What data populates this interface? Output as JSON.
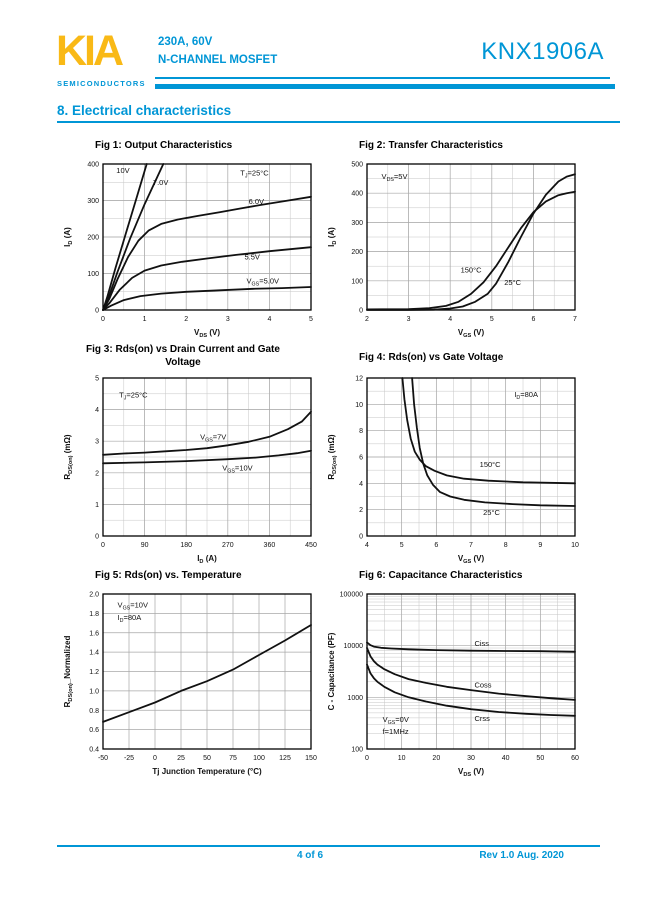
{
  "header": {
    "logo": "KIA",
    "logo_sub": "SEMICONDUCTORS",
    "rating": "230A, 60V",
    "device_type": "N-CHANNEL MOSFET",
    "part_number": "KNX1906A"
  },
  "section": {
    "heading": "8. Electrical characteristics"
  },
  "footer": {
    "page": "4 of 6",
    "revision": "Rev 1.0 Aug. 2020"
  },
  "colors": {
    "accent_blue": "#0096d6",
    "logo_yellow": "#f9b916",
    "curve_black": "#111111",
    "grid_major": "#a8a8a8",
    "grid_minor": "#c6c6c6"
  },
  "chart_data": [
    {
      "id": "fig1",
      "type": "line",
      "title": "Fig 1: Output Characteristics",
      "xlabel": "V~DS~ (V)",
      "ylabel": "I~D~ (A)",
      "xlim": [
        0,
        5
      ],
      "ylim": [
        0,
        400
      ],
      "xticks": [
        0,
        1,
        2,
        3,
        4,
        5
      ],
      "yticks": [
        0,
        100,
        200,
        300,
        400
      ],
      "xminor": 0.5,
      "yminor": 50,
      "grid": true,
      "series": [
        {
          "name": "VGS=10V",
          "points": [
            [
              0,
              0
            ],
            [
              0.1,
              35
            ],
            [
              0.3,
              115
            ],
            [
              0.55,
              210
            ],
            [
              0.8,
              305
            ],
            [
              1.05,
              400
            ]
          ]
        },
        {
          "name": "VGS=7.0V",
          "points": [
            [
              0,
              0
            ],
            [
              0.12,
              30
            ],
            [
              0.35,
              105
            ],
            [
              0.65,
              195
            ],
            [
              1.0,
              290
            ],
            [
              1.45,
              400
            ]
          ]
        },
        {
          "name": "VGS=6.0V",
          "points": [
            [
              0,
              0
            ],
            [
              0.15,
              30
            ],
            [
              0.35,
              85
            ],
            [
              0.6,
              145
            ],
            [
              0.85,
              190
            ],
            [
              1.1,
              218
            ],
            [
              1.4,
              236
            ],
            [
              1.8,
              248
            ],
            [
              2.3,
              258
            ],
            [
              2.8,
              268
            ],
            [
              3.3,
              278
            ],
            [
              3.8,
              288
            ],
            [
              4.4,
              299
            ],
            [
              5,
              310
            ]
          ]
        },
        {
          "name": "VGS=5.5V",
          "points": [
            [
              0,
              0
            ],
            [
              0.15,
              18
            ],
            [
              0.4,
              55
            ],
            [
              0.7,
              88
            ],
            [
              1.0,
              108
            ],
            [
              1.4,
              122
            ],
            [
              1.9,
              132
            ],
            [
              2.5,
              141
            ],
            [
              3.2,
              151
            ],
            [
              4,
              161
            ],
            [
              5,
              172
            ]
          ]
        },
        {
          "name": "VGS=5.0V",
          "points": [
            [
              0,
              0
            ],
            [
              0.2,
              12
            ],
            [
              0.5,
              27
            ],
            [
              0.9,
              38
            ],
            [
              1.4,
              45
            ],
            [
              2,
              50
            ],
            [
              2.8,
              54
            ],
            [
              3.6,
              58
            ],
            [
              4.3,
              60
            ],
            [
              5,
              63
            ]
          ]
        }
      ],
      "labels": [
        {
          "text": "10V",
          "x": 0.32,
          "y": 375
        },
        {
          "text": "7.0V",
          "x": 1.2,
          "y": 342
        },
        {
          "text": "T~J~=25°C",
          "x": 3.3,
          "y": 368
        },
        {
          "text": "6.0V",
          "x": 3.5,
          "y": 290
        },
        {
          "text": "5.5V",
          "x": 3.4,
          "y": 138
        },
        {
          "text": "V~GS~=5.0V",
          "x": 3.45,
          "y": 72
        }
      ]
    },
    {
      "id": "fig2",
      "type": "line",
      "title": "Fig 2: Transfer Characteristics",
      "xlabel": "V~GS~ (V)",
      "ylabel": "I~D~ (A)",
      "xlim": [
        2,
        7
      ],
      "ylim": [
        0,
        500
      ],
      "xticks": [
        2,
        3,
        4,
        5,
        6,
        7
      ],
      "yticks": [
        0,
        100,
        200,
        300,
        400,
        500
      ],
      "xminor": 0.5,
      "yminor": 50,
      "grid": true,
      "series": [
        {
          "name": "150°C",
          "points": [
            [
              2,
              2
            ],
            [
              3,
              3
            ],
            [
              3.5,
              6
            ],
            [
              3.9,
              14
            ],
            [
              4.2,
              28
            ],
            [
              4.5,
              55
            ],
            [
              4.8,
              95
            ],
            [
              5.1,
              150
            ],
            [
              5.4,
              215
            ],
            [
              5.7,
              280
            ],
            [
              6.0,
              335
            ],
            [
              6.3,
              372
            ],
            [
              6.6,
              393
            ],
            [
              6.8,
              400
            ],
            [
              7,
              405
            ]
          ]
        },
        {
          "name": "25°C",
          "points": [
            [
              2,
              0
            ],
            [
              3,
              0
            ],
            [
              3.6,
              1
            ],
            [
              4.0,
              5
            ],
            [
              4.3,
              12
            ],
            [
              4.6,
              28
            ],
            [
              4.9,
              55
            ],
            [
              5.1,
              90
            ],
            [
              5.4,
              165
            ],
            [
              5.7,
              250
            ],
            [
              6.0,
              330
            ],
            [
              6.3,
              395
            ],
            [
              6.6,
              440
            ],
            [
              6.8,
              457
            ],
            [
              7,
              465
            ]
          ]
        }
      ],
      "labels": [
        {
          "text": "V~DS~=5V",
          "x": 2.35,
          "y": 448
        },
        {
          "text": "150°C",
          "x": 4.25,
          "y": 128
        },
        {
          "text": "25°C",
          "x": 5.3,
          "y": 85
        }
      ]
    },
    {
      "id": "fig3",
      "type": "line",
      "title": "Fig 3: Rds(on) vs Drain Current and Gate Voltage",
      "xlabel": "I~D~ (A)",
      "ylabel": "R~DS(on)~ (mΩ)",
      "xlim": [
        0,
        450
      ],
      "ylim": [
        0,
        5
      ],
      "xticks": [
        0,
        90,
        180,
        270,
        360,
        450
      ],
      "yticks": [
        0,
        1,
        2,
        3,
        4,
        5
      ],
      "xminor": 45,
      "yminor": 0.5,
      "grid": true,
      "series": [
        {
          "name": "VGS=7V",
          "points": [
            [
              0,
              2.57
            ],
            [
              45,
              2.61
            ],
            [
              90,
              2.64
            ],
            [
              135,
              2.68
            ],
            [
              180,
              2.72
            ],
            [
              225,
              2.78
            ],
            [
              270,
              2.87
            ],
            [
              315,
              2.98
            ],
            [
              360,
              3.14
            ],
            [
              400,
              3.38
            ],
            [
              430,
              3.62
            ],
            [
              450,
              3.93
            ]
          ]
        },
        {
          "name": "VGS=10V",
          "points": [
            [
              0,
              2.3
            ],
            [
              90,
              2.33
            ],
            [
              180,
              2.37
            ],
            [
              270,
              2.43
            ],
            [
              330,
              2.48
            ],
            [
              380,
              2.55
            ],
            [
              420,
              2.62
            ],
            [
              450,
              2.7
            ]
          ]
        }
      ],
      "labels": [
        {
          "text": "T~J~=25°C",
          "x": 35,
          "y": 4.38
        },
        {
          "text": "V~GS~=7V",
          "x": 210,
          "y": 3.05
        },
        {
          "text": "V~GS~=10V",
          "x": 258,
          "y": 2.08
        }
      ]
    },
    {
      "id": "fig4",
      "type": "line",
      "title": "Fig 4: Rds(on) vs Gate Voltage",
      "xlabel": "V~GS~ (V)",
      "ylabel": "R~DS(on)~ (mΩ)",
      "xlim": [
        4,
        10
      ],
      "ylim": [
        0,
        12
      ],
      "xticks": [
        4,
        5,
        6,
        7,
        8,
        9,
        10
      ],
      "yticks": [
        0,
        2,
        4,
        6,
        8,
        10,
        12
      ],
      "xminor": 0.5,
      "yminor": 1,
      "grid": true,
      "series": [
        {
          "name": "150°C",
          "points": [
            [
              5.02,
              12
            ],
            [
              5.08,
              10.4
            ],
            [
              5.16,
              8.8
            ],
            [
              5.26,
              7.4
            ],
            [
              5.38,
              6.4
            ],
            [
              5.52,
              5.8
            ],
            [
              5.7,
              5.3
            ],
            [
              5.95,
              4.95
            ],
            [
              6.3,
              4.6
            ],
            [
              6.8,
              4.35
            ],
            [
              7.5,
              4.2
            ],
            [
              8.5,
              4.08
            ],
            [
              10,
              4.0
            ]
          ]
        },
        {
          "name": "25°C",
          "points": [
            [
              5.3,
              12
            ],
            [
              5.36,
              10
            ],
            [
              5.44,
              8.2
            ],
            [
              5.52,
              6.7
            ],
            [
              5.62,
              5.5
            ],
            [
              5.74,
              4.6
            ],
            [
              5.9,
              3.9
            ],
            [
              6.1,
              3.35
            ],
            [
              6.4,
              3.0
            ],
            [
              6.8,
              2.75
            ],
            [
              7.4,
              2.55
            ],
            [
              8.2,
              2.42
            ],
            [
              9,
              2.33
            ],
            [
              10,
              2.28
            ]
          ]
        }
      ],
      "labels": [
        {
          "text": "I~D~=80A",
          "x": 8.25,
          "y": 10.55
        },
        {
          "text": "150°C",
          "x": 7.25,
          "y": 5.25
        },
        {
          "text": "25°C",
          "x": 7.35,
          "y": 1.6
        }
      ]
    },
    {
      "id": "fig5",
      "type": "line",
      "title": "Fig 5: Rds(on) vs. Temperature",
      "xlabel": "Tj  Junction Temperature (°C)",
      "ylabel": "R~DS(on)~_Normalized",
      "xlim": [
        -50,
        150
      ],
      "ylim": [
        0.4,
        2.0
      ],
      "xticks": [
        -50,
        -25,
        0,
        25,
        50,
        75,
        100,
        125,
        150
      ],
      "yticks": [
        0.4,
        0.6,
        0.8,
        1.0,
        1.2,
        1.4,
        1.6,
        1.8,
        2.0
      ],
      "ytick_labels": [
        "0.4",
        "0.6",
        "0.8",
        "1.0",
        "1.2",
        "1.4",
        "1.6",
        "1.8",
        "2.0"
      ],
      "xminor": null,
      "yminor": null,
      "grid": true,
      "series": [
        {
          "name": "Rds(on) normalized",
          "points": [
            [
              -50,
              0.68
            ],
            [
              -25,
              0.78
            ],
            [
              0,
              0.88
            ],
            [
              25,
              1.0
            ],
            [
              50,
              1.1
            ],
            [
              75,
              1.22
            ],
            [
              100,
              1.37
            ],
            [
              125,
              1.52
            ],
            [
              150,
              1.68
            ]
          ]
        }
      ],
      "labels": [
        {
          "text": "V~GS~=10V",
          "x": -36,
          "y": 1.86
        },
        {
          "text": "I~D~=80A",
          "x": -36,
          "y": 1.73
        }
      ]
    },
    {
      "id": "fig6",
      "type": "line",
      "title": "Fig 6: Capacitance Characteristics",
      "xlabel": "V~DS~ (V)",
      "ylabel": "C - Capacitance (PF)",
      "xlim": [
        0,
        60
      ],
      "ylim": [
        100,
        100000
      ],
      "yscale": "log",
      "xticks": [
        0,
        10,
        20,
        30,
        40,
        50,
        60
      ],
      "yticks": [
        100,
        1000,
        10000,
        100000
      ],
      "xminor": 5,
      "yminor": null,
      "grid": true,
      "series": [
        {
          "name": "Ciss",
          "points": [
            [
              0,
              11500
            ],
            [
              1,
              10200
            ],
            [
              2,
              9600
            ],
            [
              4,
              9100
            ],
            [
              7,
              8800
            ],
            [
              12,
              8500
            ],
            [
              20,
              8200
            ],
            [
              30,
              8000
            ],
            [
              40,
              7900
            ],
            [
              50,
              7800
            ],
            [
              60,
              7600
            ]
          ]
        },
        {
          "name": "Coss",
          "points": [
            [
              0,
              9000
            ],
            [
              1,
              6200
            ],
            [
              2,
              5000
            ],
            [
              3,
              4300
            ],
            [
              5,
              3500
            ],
            [
              8,
              2800
            ],
            [
              12,
              2250
            ],
            [
              17,
              1900
            ],
            [
              23,
              1600
            ],
            [
              30,
              1380
            ],
            [
              38,
              1180
            ],
            [
              46,
              1050
            ],
            [
              53,
              960
            ],
            [
              60,
              890
            ]
          ]
        },
        {
          "name": "Crss",
          "points": [
            [
              0,
              4300
            ],
            [
              1,
              2900
            ],
            [
              2,
              2350
            ],
            [
              3,
              2000
            ],
            [
              5,
              1600
            ],
            [
              8,
              1250
            ],
            [
              12,
              1000
            ],
            [
              17,
              830
            ],
            [
              23,
              690
            ],
            [
              30,
              590
            ],
            [
              38,
              520
            ],
            [
              46,
              480
            ],
            [
              53,
              455
            ],
            [
              60,
              440
            ]
          ]
        }
      ],
      "labels": [
        {
          "text": "Ciss",
          "x": 31,
          "y": 9800
        },
        {
          "text": "Coss",
          "x": 31,
          "y": 1560
        },
        {
          "text": "Crss",
          "x": 31,
          "y": 345
        },
        {
          "text": "V~GS~=0V",
          "x": 4.5,
          "y": 330
        },
        {
          "text": "f=1MHz",
          "x": 4.5,
          "y": 195
        }
      ]
    }
  ]
}
